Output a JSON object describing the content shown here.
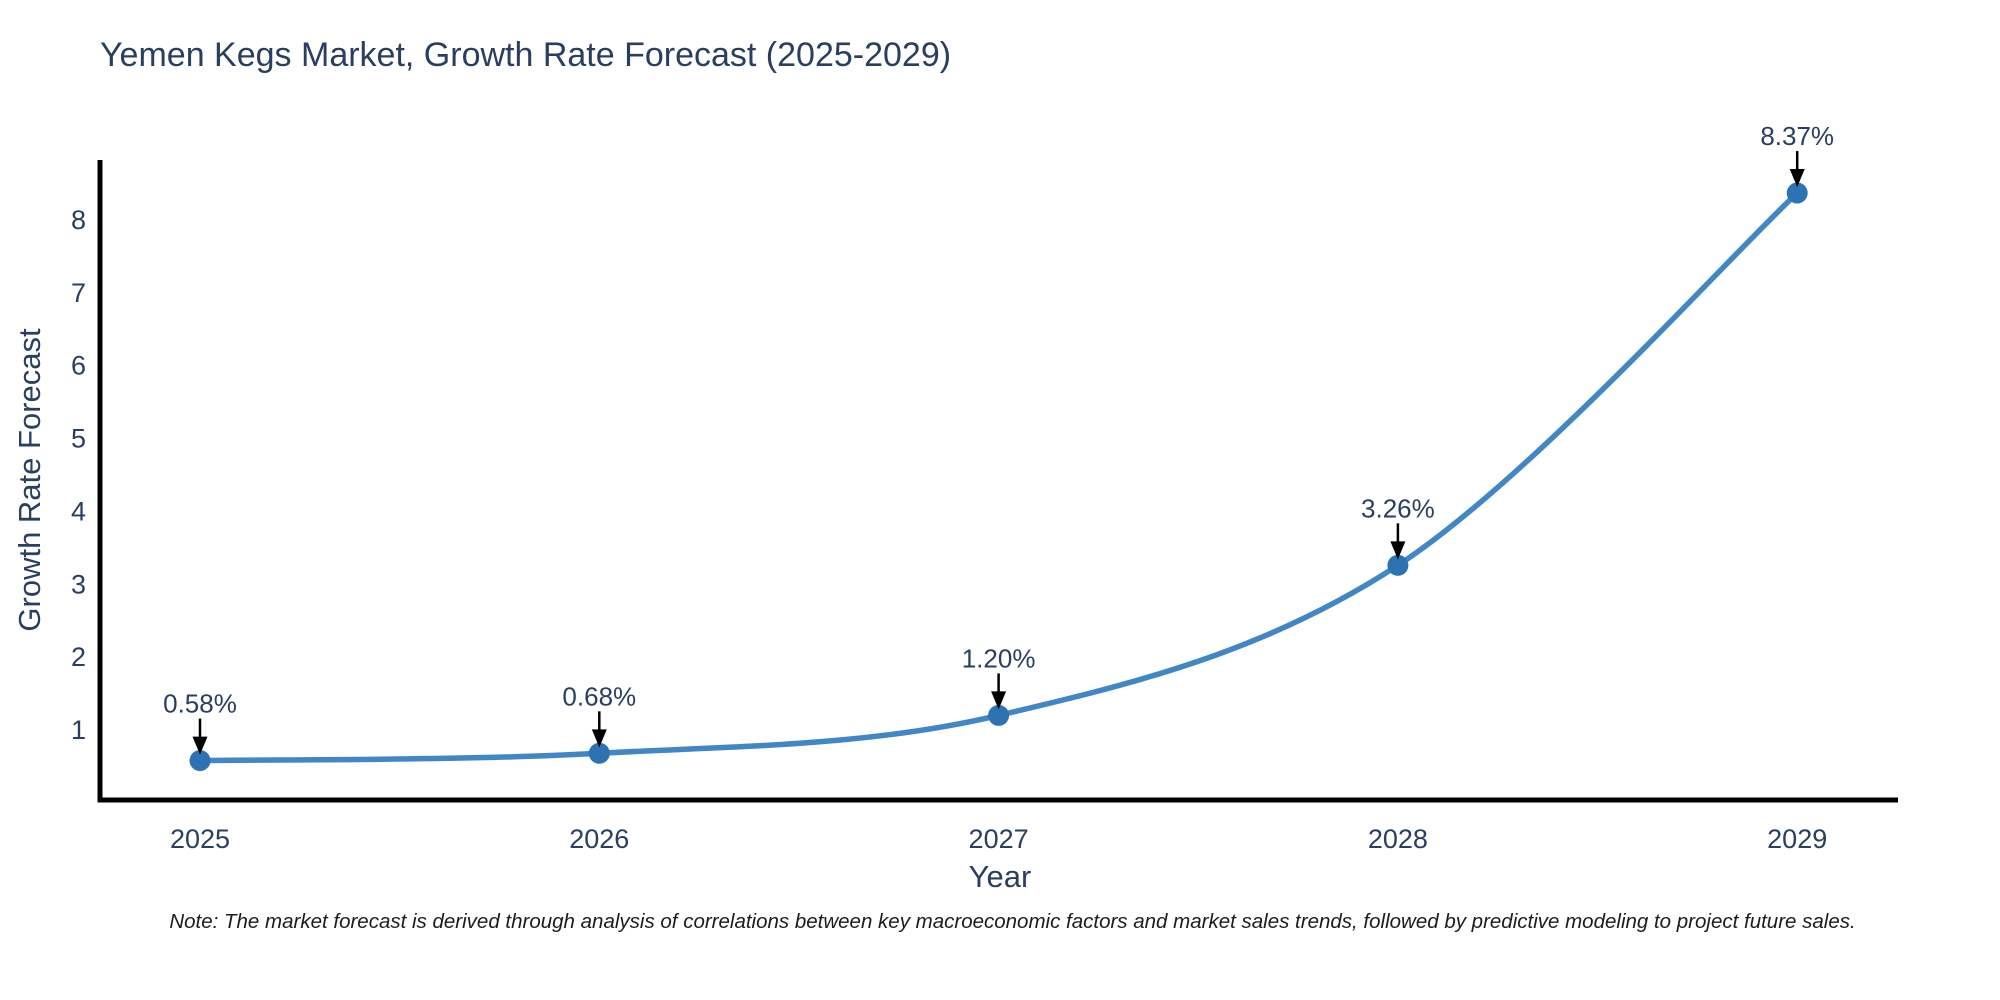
{
  "title": "Yemen Kegs Market, Growth Rate Forecast (2025-2029)",
  "note": "Note: The market forecast is derived through analysis of correlations between key macroeconomic factors and market sales trends, followed by predictive modeling to project future sales.",
  "chart_data": {
    "type": "line",
    "title": "Yemen Kegs Market, Growth Rate Forecast (2025-2029)",
    "x": [
      2025,
      2026,
      2027,
      2028,
      2029
    ],
    "x_tick_labels": [
      "2025",
      "2026",
      "2027",
      "2028",
      "2029"
    ],
    "series": [
      {
        "name": "Growth Rate Forecast",
        "values": [
          0.58,
          0.68,
          1.2,
          3.26,
          8.37
        ],
        "point_labels": [
          "0.58%",
          "0.68%",
          "1.20%",
          "3.26%",
          "8.37%"
        ]
      }
    ],
    "xlabel": "Year",
    "ylabel": "Growth Rate Forecast",
    "y_ticks": [
      1,
      2,
      3,
      4,
      5,
      6,
      7,
      8
    ],
    "ylim": [
      0.05,
      8.85
    ],
    "grid": false,
    "legend": "none",
    "curve": "spline",
    "marker_style": "circle-with-down-arrow-annotations",
    "colors": {
      "line": "#4187c6",
      "marker": "#2d73b3",
      "axis": "#000000",
      "text": "#2a3f5f",
      "annotation_arrow": "#000000"
    }
  }
}
